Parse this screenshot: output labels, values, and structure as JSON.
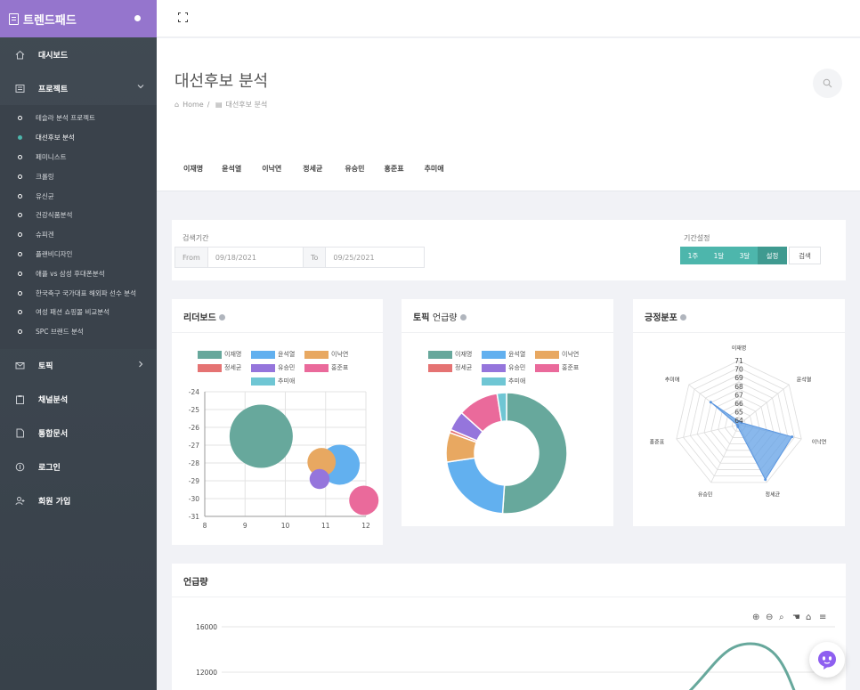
{
  "brand": {
    "title": "트렌드패드"
  },
  "sidebar": {
    "items": [
      {
        "label": "대시보드",
        "icon": "home-icon"
      },
      {
        "label": "프로젝트",
        "icon": "project-icon"
      }
    ],
    "projects": [
      "테슬라 분석 프로젝트",
      "대선후보 분석",
      "페미니스트",
      "크롤링",
      "유신균",
      "건강식품분석",
      "슈피겐",
      "플랜비디자인",
      "애플 vs 삼성 후대폰분석",
      "한국축구 국가대표 해외파 선수 분석",
      "여성 패션 쇼핑몰 비교분석",
      "SPC 브랜드 분석"
    ],
    "active_project": "대선후보 분석",
    "bottom_items": [
      {
        "label": "토픽",
        "icon": "mail-icon"
      },
      {
        "label": "채널분석",
        "icon": "clipboard-icon"
      },
      {
        "label": "통합문서",
        "icon": "document-icon"
      },
      {
        "label": "로그인",
        "icon": "login-icon"
      },
      {
        "label": "회원 가입",
        "icon": "user-add-icon"
      }
    ]
  },
  "header": {
    "title": "대선후보 분석",
    "breadcrumb_home": "Home",
    "breadcrumb_sep": "/",
    "breadcrumb_current": "대선후보 분석",
    "tabs": [
      "이재명",
      "윤석열",
      "이낙연",
      "정세균",
      "유승민",
      "홍준표",
      "추미애"
    ]
  },
  "search": {
    "period_label": "검색기간",
    "from_label": "From",
    "from_value": "09/18/2021",
    "to_label": "To",
    "to_value": "09/25/2021",
    "preset_label": "기간설정",
    "presets": [
      "1주",
      "1달",
      "3달"
    ],
    "set_label": "설정",
    "search_label": "검색"
  },
  "colors": {
    "이재명": "#67a89c",
    "윤석열": "#62b0ef",
    "이낙연": "#e8a861",
    "정세균": "#e57373",
    "유승민": "#9575dc",
    "홍준표": "#ea6a9b",
    "추미애": "#6fc6d4"
  },
  "cards": {
    "leaderboard": {
      "title": "리더보드"
    },
    "mentions_topic": {
      "title_bold": "토픽",
      "title_thin": "언급량"
    },
    "sentiment": {
      "title": "긍정분포"
    },
    "mentions": {
      "title": "언급량"
    }
  },
  "chart_data": [
    {
      "type": "scatter",
      "title": "리더보드",
      "xlim": [
        8,
        12
      ],
      "ylim": [
        -31,
        -24
      ],
      "x_ticks": [
        "8",
        "9",
        "10",
        "11",
        "12"
      ],
      "y_ticks": [
        "-24",
        "-25",
        "-26",
        "-27",
        "-28",
        "-29",
        "-30",
        "-31"
      ],
      "legend": [
        "이재명",
        "윤석열",
        "이낙연",
        "정세균",
        "유승민",
        "홍준표",
        "추미애"
      ],
      "series": [
        {
          "name": "이재명",
          "x": 9.4,
          "y": -26.5,
          "size": 3
        },
        {
          "name": "윤석열",
          "x": 11.35,
          "y": -28.1,
          "size": 1.2
        },
        {
          "name": "이낙연",
          "x": 10.9,
          "y": -27.95,
          "size": 0.6
        },
        {
          "name": "유승민",
          "x": 10.85,
          "y": -28.9,
          "size": 0.3
        },
        {
          "name": "홍준표",
          "x": 11.95,
          "y": -30.1,
          "size": 0.65
        }
      ]
    },
    {
      "type": "pie",
      "title": "토픽 언급량",
      "legend": [
        "이재명",
        "윤석열",
        "이낙연",
        "정세균",
        "유승민",
        "홍준표",
        "추미애"
      ],
      "slices": [
        {
          "name": "이재명",
          "value": 48.5
        },
        {
          "name": "윤석열",
          "value": 20.5
        },
        {
          "name": "이낙연",
          "value": 7.5
        },
        {
          "name": "정세균",
          "value": 0.8
        },
        {
          "name": "유승민",
          "value": 5
        },
        {
          "name": "홍준표",
          "value": 10.3
        },
        {
          "name": "추미애",
          "value": 2.4
        }
      ]
    },
    {
      "type": "radar",
      "title": "긍정분포",
      "categories": [
        "이재명",
        "윤석열",
        "이낙연",
        "정세균",
        "유승민",
        "홍준표",
        "추미애"
      ],
      "ticks": [
        "71",
        "70",
        "69",
        "68",
        "67",
        "66",
        "65",
        "64"
      ],
      "values": [
        63.6,
        63.6,
        70,
        70.8,
        63.5,
        63.4,
        67.7
      ]
    },
    {
      "type": "line",
      "title": "언급량",
      "y_ticks": [
        "16000",
        "12000"
      ],
      "series": [
        {
          "name": "이재명"
        }
      ]
    }
  ]
}
